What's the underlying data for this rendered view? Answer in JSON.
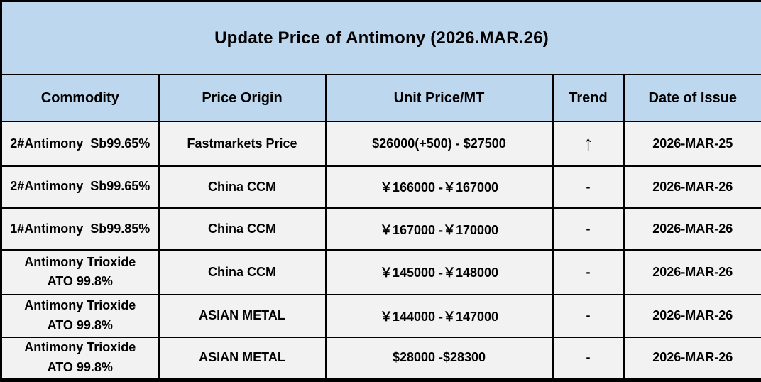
{
  "title": "Update Price of Antimony (2026.MAR.26)",
  "colors": {
    "header_bg": "#BDD7EE",
    "row_bg": "#F2F2F2",
    "border": "#000000",
    "text": "#000000"
  },
  "table": {
    "columns": [
      "Commodity",
      "Price Origin",
      "Unit Price/MT",
      "Trend",
      "Date of Issue"
    ],
    "rows": [
      {
        "commodity": "2#Antimony  Sb99.65%",
        "origin": "Fastmarkets Price",
        "price": "$26000(+500) - $27500",
        "trend": "↑",
        "date": "2026-MAR-25"
      },
      {
        "commodity": "2#Antimony  Sb99.65%",
        "origin": "China CCM",
        "price": "￥166000 -￥167000",
        "trend": "-",
        "date": "2026-MAR-26"
      },
      {
        "commodity": "1#Antimony  Sb99.85%",
        "origin": "China CCM",
        "price": "￥167000 -￥170000",
        "trend": "-",
        "date": "2026-MAR-26"
      },
      {
        "commodity": "Antimony Trioxide\nATO 99.8%",
        "origin": "China CCM",
        "price": "￥145000 -￥148000",
        "trend": "-",
        "date": "2026-MAR-26"
      },
      {
        "commodity": "Antimony Trioxide\nATO 99.8%",
        "origin": "ASIAN METAL",
        "price": "￥144000 -￥147000",
        "trend": "-",
        "date": "2026-MAR-26"
      },
      {
        "commodity": "Antimony Trioxide\nATO 99.8%",
        "origin": "ASIAN METAL",
        "price": "$28000 -$28300",
        "trend": "-",
        "date": "2026-MAR-26"
      }
    ]
  }
}
